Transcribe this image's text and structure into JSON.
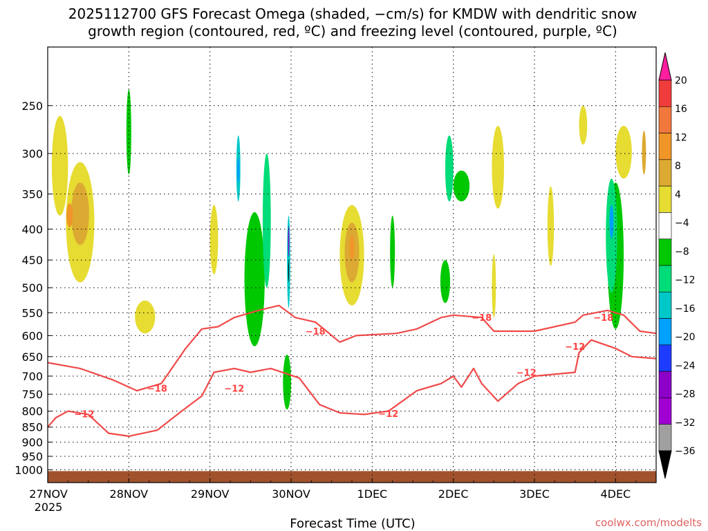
{
  "chart_data": {
    "type": "heatmap",
    "title_line1": "2025112700 GFS Forecast Omega (shaded, −cm/s) for KMDW with dendritic snow",
    "title_line2": "growth region (contoured, red, ºC) and freezing level (contoured, purple, ºC)",
    "xlabel": "Forecast Time (UTC)",
    "credit": "coolwx.com/modelts",
    "x_ticks": [
      "27NOV",
      "28NOV",
      "29NOV",
      "30NOV",
      "1DEC",
      "2DEC",
      "3DEC",
      "4DEC"
    ],
    "x_tick_sublabel": "2025",
    "xlim_days": [
      0,
      7.5
    ],
    "y_ticks": [
      250,
      300,
      350,
      400,
      450,
      500,
      550,
      600,
      650,
      700,
      750,
      800,
      850,
      900,
      950,
      1000
    ],
    "ylim_hpa": [
      1050,
      200
    ],
    "colorbar": {
      "labels": [
        "20",
        "16",
        "12",
        "8",
        "4",
        "−4",
        "−8",
        "−12",
        "−16",
        "−20",
        "−24",
        "−28",
        "−32",
        "−36"
      ],
      "colors": [
        "#ff1ea0",
        "#f03c3c",
        "#f0783c",
        "#f09628",
        "#dcaa32",
        "#e6dc32",
        "#ffffff",
        "#00c800",
        "#00dc78",
        "#00c8c8",
        "#00a0ff",
        "#1e3cff",
        "#8c00c8",
        "#a000d2",
        "#a0a0a0",
        "#000000"
      ]
    },
    "omega_blobs": [
      {
        "color": "#e6dc32",
        "day": 0.4,
        "p": 400,
        "wd": 0.35,
        "hp": 180
      },
      {
        "color": "#e6dc32",
        "day": 0.15,
        "p": 320,
        "wd": 0.2,
        "hp": 120
      },
      {
        "color": "#dcaa32",
        "day": 0.4,
        "p": 380,
        "wd": 0.22,
        "hp": 90
      },
      {
        "color": "#f09628",
        "day": 0.27,
        "p": 380,
        "wd": 0.08,
        "hp": 35
      },
      {
        "color": "#e6dc32",
        "day": 1.2,
        "p": 560,
        "wd": 0.25,
        "hp": 70
      },
      {
        "color": "#e6dc32",
        "day": 2.05,
        "p": 420,
        "wd": 0.1,
        "hp": 110
      },
      {
        "color": "#00c800",
        "day": 2.55,
        "p": 500,
        "wd": 0.25,
        "hp": 250
      },
      {
        "color": "#00c800",
        "day": 1.0,
        "p": 280,
        "wd": 0.06,
        "hp": 90
      },
      {
        "color": "#00c800",
        "day": 2.95,
        "p": 720,
        "wd": 0.1,
        "hp": 150
      },
      {
        "color": "#00dc78",
        "day": 2.7,
        "p": 400,
        "wd": 0.1,
        "hp": 200
      },
      {
        "color": "#00c8c8",
        "day": 2.35,
        "p": 320,
        "wd": 0.05,
        "hp": 80
      },
      {
        "color": "#00a0ff",
        "day": 2.35,
        "p": 320,
        "wd": 0.03,
        "hp": 30
      },
      {
        "color": "#00c8c8",
        "day": 2.97,
        "p": 460,
        "wd": 0.04,
        "hp": 160
      },
      {
        "color": "#8c00c8",
        "day": 2.97,
        "p": 420,
        "wd": 0.015,
        "hp": 50
      },
      {
        "color": "#000000",
        "day": 2.97,
        "p": 470,
        "wd": 0.01,
        "hp": 40
      },
      {
        "color": "#e6dc32",
        "day": 3.75,
        "p": 450,
        "wd": 0.3,
        "hp": 170
      },
      {
        "color": "#dcaa32",
        "day": 3.75,
        "p": 440,
        "wd": 0.18,
        "hp": 100
      },
      {
        "color": "#f09628",
        "day": 3.75,
        "p": 430,
        "wd": 0.06,
        "hp": 40
      },
      {
        "color": "#00c800",
        "day": 4.25,
        "p": 440,
        "wd": 0.06,
        "hp": 120
      },
      {
        "color": "#00dc78",
        "day": 4.95,
        "p": 320,
        "wd": 0.1,
        "hp": 80
      },
      {
        "color": "#00c800",
        "day": 5.1,
        "p": 340,
        "wd": 0.2,
        "hp": 40
      },
      {
        "color": "#00c800",
        "day": 4.9,
        "p": 490,
        "wd": 0.12,
        "hp": 80
      },
      {
        "color": "#e6dc32",
        "day": 5.5,
        "p": 500,
        "wd": 0.05,
        "hp": 120
      },
      {
        "color": "#e6dc32",
        "day": 5.55,
        "p": 320,
        "wd": 0.15,
        "hp": 100
      },
      {
        "color": "#00c800",
        "day": 7.0,
        "p": 460,
        "wd": 0.2,
        "hp": 250
      },
      {
        "color": "#00dc78",
        "day": 6.95,
        "p": 420,
        "wd": 0.14,
        "hp": 180
      },
      {
        "color": "#00a0ff",
        "day": 6.95,
        "p": 390,
        "wd": 0.05,
        "hp": 50
      },
      {
        "color": "#e6dc32",
        "day": 6.6,
        "p": 270,
        "wd": 0.1,
        "hp": 40
      },
      {
        "color": "#e6dc32",
        "day": 7.1,
        "p": 300,
        "wd": 0.2,
        "hp": 60
      },
      {
        "color": "#dcaa32",
        "day": 7.35,
        "p": 300,
        "wd": 0.05,
        "hp": 50
      },
      {
        "color": "#e6dc32",
        "day": 6.2,
        "p": 400,
        "wd": 0.08,
        "hp": 120
      }
    ],
    "ground_fill_color": "#a0522d",
    "dendritic_contours": [
      {
        "label": "−12",
        "points": [
          [
            0,
            850
          ],
          [
            0.1,
            820
          ],
          [
            0.25,
            800
          ],
          [
            0.5,
            810
          ],
          [
            0.75,
            870
          ],
          [
            1.0,
            880
          ],
          [
            1.35,
            860
          ],
          [
            1.65,
            800
          ],
          [
            1.9,
            755
          ],
          [
            2.05,
            690
          ],
          [
            2.3,
            680
          ],
          [
            2.5,
            690
          ],
          [
            2.75,
            680
          ],
          [
            3.1,
            705
          ],
          [
            3.35,
            780
          ],
          [
            3.6,
            805
          ],
          [
            3.9,
            810
          ],
          [
            4.2,
            800
          ],
          [
            4.55,
            740
          ],
          [
            4.85,
            720
          ],
          [
            5.0,
            700
          ],
          [
            5.1,
            730
          ],
          [
            5.25,
            680
          ],
          [
            5.35,
            720
          ],
          [
            5.55,
            770
          ],
          [
            5.8,
            720
          ],
          [
            6.0,
            700
          ],
          [
            6.5,
            690
          ],
          [
            6.55,
            640
          ],
          [
            6.7,
            610
          ],
          [
            7.0,
            630
          ],
          [
            7.2,
            650
          ],
          [
            7.5,
            655
          ]
        ],
        "label_at": [
          0.45,
          808
        ]
      },
      {
        "label": "−18",
        "points": [
          [
            0,
            665
          ],
          [
            0.4,
            680
          ],
          [
            0.8,
            710
          ],
          [
            1.1,
            740
          ],
          [
            1.4,
            720
          ],
          [
            1.7,
            630
          ],
          [
            1.9,
            585
          ],
          [
            2.1,
            580
          ],
          [
            2.3,
            560
          ],
          [
            2.6,
            545
          ],
          [
            2.85,
            535
          ],
          [
            3.05,
            560
          ],
          [
            3.3,
            570
          ],
          [
            3.6,
            615
          ],
          [
            3.8,
            600
          ],
          [
            4.3,
            595
          ],
          [
            4.55,
            585
          ],
          [
            4.85,
            560
          ],
          [
            5.0,
            555
          ],
          [
            5.35,
            560
          ],
          [
            5.5,
            590
          ],
          [
            6.0,
            590
          ],
          [
            6.5,
            570
          ],
          [
            6.6,
            555
          ],
          [
            6.9,
            545
          ],
          [
            7.1,
            555
          ],
          [
            7.3,
            590
          ],
          [
            7.5,
            595
          ]
        ],
        "label_at": [
          1.35,
          733
        ]
      }
    ],
    "contour_labels_extra": [
      {
        "text": "−12",
        "day": 2.3,
        "p": 733
      },
      {
        "text": "−12",
        "day": 4.2,
        "p": 807
      },
      {
        "text": "−12",
        "day": 5.9,
        "p": 690
      },
      {
        "text": "−12",
        "day": 6.5,
        "p": 625
      },
      {
        "text": "−18",
        "day": 3.3,
        "p": 590
      },
      {
        "text": "−18",
        "day": 5.35,
        "p": 560
      },
      {
        "text": "−18",
        "day": 6.85,
        "p": 560
      }
    ]
  }
}
